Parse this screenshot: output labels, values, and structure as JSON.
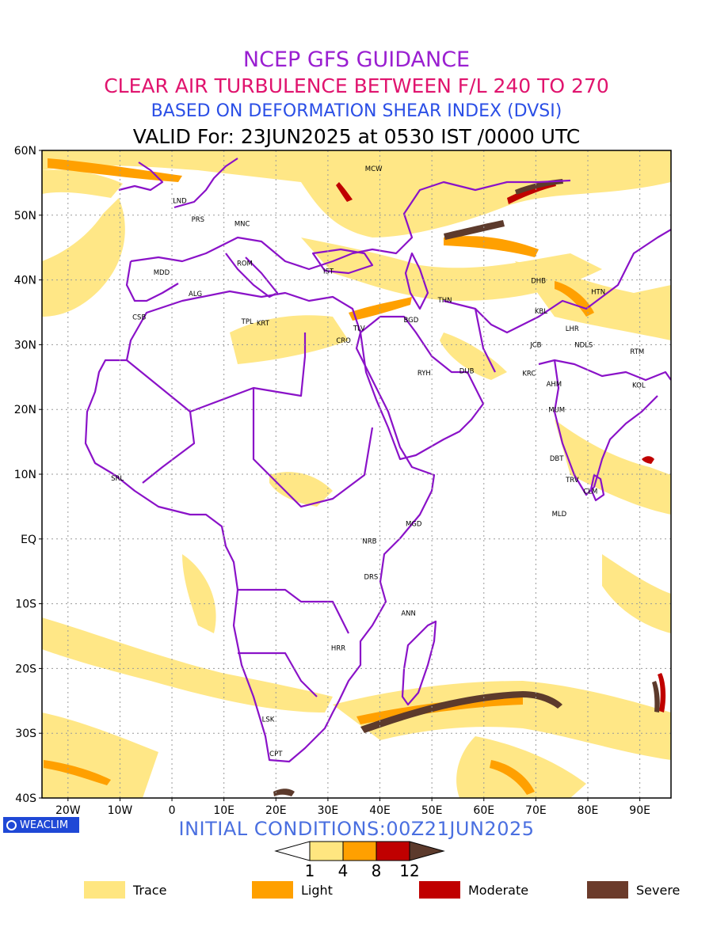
{
  "titles": {
    "line1": "NCEP GFS GUIDANCE",
    "line2": "CLEAR AIR TURBULENCE BETWEEN F/L 240 TO 270",
    "line3": "BASED ON DEFORMATION SHEAR INDEX (DVSI)",
    "line4": "VALID For: 23JUN2025 at 0530 IST /0000 UTC"
  },
  "initial_conditions": "INITIAL CONDITIONS:00Z21JUN2025",
  "logo": "WEACLIM",
  "map": {
    "lat_labels": [
      {
        "lat": 60,
        "label": "60N"
      },
      {
        "lat": 50,
        "label": "50N"
      },
      {
        "lat": 40,
        "label": "40N"
      },
      {
        "lat": 30,
        "label": "30N"
      },
      {
        "lat": 20,
        "label": "20N"
      },
      {
        "lat": 10,
        "label": "10N"
      },
      {
        "lat": 0,
        "label": "EQ"
      },
      {
        "lat": -10,
        "label": "10S"
      },
      {
        "lat": -20,
        "label": "20S"
      },
      {
        "lat": -30,
        "label": "30S"
      },
      {
        "lat": -40,
        "label": "40S"
      }
    ],
    "lon_labels": [
      {
        "lon": -20,
        "label": "20W"
      },
      {
        "lon": -10,
        "label": "10W"
      },
      {
        "lon": 0,
        "label": "0"
      },
      {
        "lon": 10,
        "label": "10E"
      },
      {
        "lon": 20,
        "label": "20E"
      },
      {
        "lon": 30,
        "label": "30E"
      },
      {
        "lon": 40,
        "label": "40E"
      },
      {
        "lon": 50,
        "label": "50E"
      },
      {
        "lon": 60,
        "label": "60E"
      },
      {
        "lon": 70,
        "label": "70E"
      },
      {
        "lon": 80,
        "label": "80E"
      },
      {
        "lon": 90,
        "label": "90E"
      }
    ],
    "stations": [
      {
        "code": "MCW",
        "lon": 38.8,
        "lat": 56.8
      },
      {
        "code": "LND",
        "lon": 1.5,
        "lat": 51.9
      },
      {
        "code": "PRS",
        "lon": 5.0,
        "lat": 49.0
      },
      {
        "code": "MNC",
        "lon": 13.5,
        "lat": 48.3
      },
      {
        "code": "ROM",
        "lon": 14.0,
        "lat": 42.2
      },
      {
        "code": "MDD",
        "lon": -2.0,
        "lat": 40.8
      },
      {
        "code": "IST",
        "lon": 30.1,
        "lat": 41.0
      },
      {
        "code": "ALG",
        "lon": 4.5,
        "lat": 37.5
      },
      {
        "code": "CSB",
        "lon": -6.3,
        "lat": 33.9
      },
      {
        "code": "TPL",
        "lon": 14.5,
        "lat": 33.2
      },
      {
        "code": "KRT",
        "lon": 17.5,
        "lat": 33.0
      },
      {
        "code": "TLV",
        "lon": 36.0,
        "lat": 32.2
      },
      {
        "code": "CRO",
        "lon": 33.0,
        "lat": 30.3
      },
      {
        "code": "BGD",
        "lon": 46.0,
        "lat": 33.5
      },
      {
        "code": "THN",
        "lon": 52.5,
        "lat": 36.5
      },
      {
        "code": "DHB",
        "lon": 70.5,
        "lat": 39.5
      },
      {
        "code": "HTN",
        "lon": 82.0,
        "lat": 37.8
      },
      {
        "code": "KBL",
        "lon": 71.0,
        "lat": 34.8
      },
      {
        "code": "LHR",
        "lon": 77.0,
        "lat": 32.1
      },
      {
        "code": "JCB",
        "lon": 70.0,
        "lat": 29.6
      },
      {
        "code": "NDLS",
        "lon": 79.2,
        "lat": 29.6
      },
      {
        "code": "RYH",
        "lon": 48.5,
        "lat": 25.3
      },
      {
        "code": "DUB",
        "lon": 56.7,
        "lat": 25.6
      },
      {
        "code": "KRC",
        "lon": 68.7,
        "lat": 25.2
      },
      {
        "code": "AHM",
        "lon": 73.5,
        "lat": 23.6
      },
      {
        "code": "RTM",
        "lon": 89.5,
        "lat": 28.6
      },
      {
        "code": "KOL",
        "lon": 89.8,
        "lat": 23.4
      },
      {
        "code": "MUM",
        "lon": 74.0,
        "lat": 19.6
      },
      {
        "code": "DBT",
        "lon": 74.0,
        "lat": 12.1
      },
      {
        "code": "TRV",
        "lon": 77.0,
        "lat": 8.8
      },
      {
        "code": "CLM",
        "lon": 80.5,
        "lat": 7.0
      },
      {
        "code": "MLD",
        "lon": 74.5,
        "lat": 3.5
      },
      {
        "code": "SRL",
        "lon": -10.5,
        "lat": 9.0
      },
      {
        "code": "MGD",
        "lon": 46.5,
        "lat": 2.0
      },
      {
        "code": "NRB",
        "lon": 38.0,
        "lat": -0.7
      },
      {
        "code": "DRS",
        "lon": 38.3,
        "lat": -6.2
      },
      {
        "code": "ANN",
        "lon": 45.5,
        "lat": -11.8
      },
      {
        "code": "HRR",
        "lon": 32.0,
        "lat": -17.2
      },
      {
        "code": "LSK",
        "lon": 18.5,
        "lat": -28.2
      },
      {
        "code": "CPT",
        "lon": 20.0,
        "lat": -33.5
      }
    ]
  },
  "colorbar": {
    "ticks": [
      "1",
      "4",
      "8",
      "12"
    ],
    "colors": [
      "#ffe680",
      "#ffa000",
      "#c00000",
      "#5c3a2c"
    ]
  },
  "legend": [
    {
      "label": "Trace",
      "color": "#ffe680"
    },
    {
      "label": "Light",
      "color": "#ffa000"
    },
    {
      "label": "Moderate",
      "color": "#c00000"
    },
    {
      "label": "Severe",
      "color": "#6b3b2b"
    }
  ]
}
